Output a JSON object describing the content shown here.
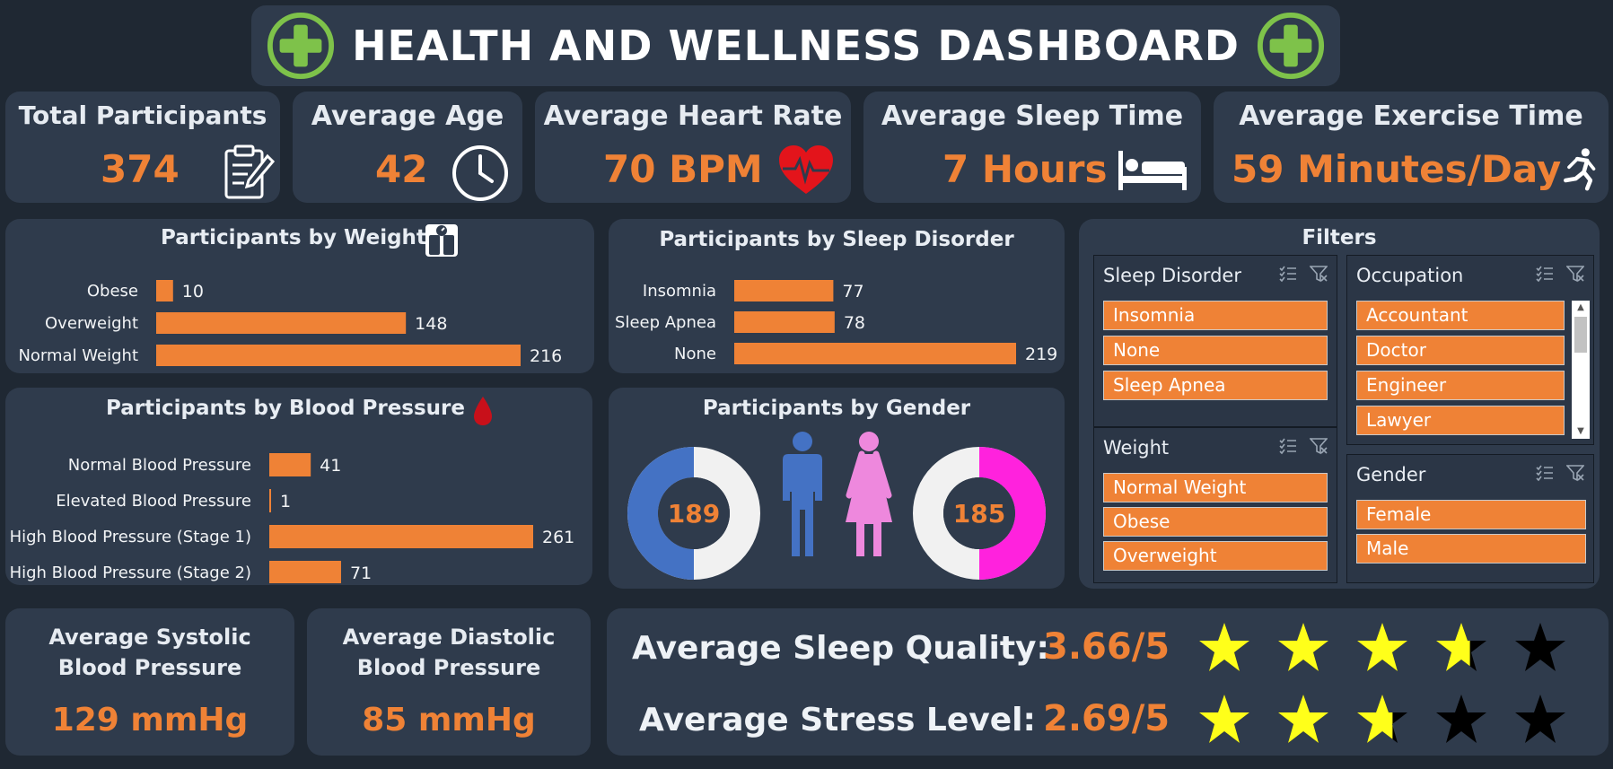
{
  "header": {
    "title": "HEALTH AND WELLNESS DASHBOARD"
  },
  "kpis": {
    "participants": {
      "title": "Total Participants",
      "value": "374"
    },
    "age": {
      "title": "Average Age",
      "value": "42"
    },
    "heart": {
      "title": "Average Heart Rate",
      "value": "70 BPM"
    },
    "sleep": {
      "title": "Average Sleep Time",
      "value": "7 Hours"
    },
    "exercise": {
      "title": "Average Exercise Time",
      "value": "59 Minutes/Day"
    }
  },
  "chart_data": [
    {
      "type": "bar",
      "title": "Participants by Weight",
      "categories": [
        "Obese",
        "Overweight",
        "Normal Weight"
      ],
      "values": [
        10,
        148,
        216
      ]
    },
    {
      "type": "bar",
      "title": "Participants by Sleep Disorder",
      "categories": [
        "Insomnia",
        "Sleep Apnea",
        "None"
      ],
      "values": [
        77,
        78,
        219
      ]
    },
    {
      "type": "bar",
      "title": "Participants by Blood Pressure",
      "categories": [
        "Normal Blood Pressure",
        "Elevated Blood Pressure",
        "High Blood Pressure (Stage 1)",
        "High Blood Pressure (Stage 2)"
      ],
      "values": [
        41,
        1,
        261,
        71
      ]
    },
    {
      "type": "pie",
      "title": "Participants by Gender",
      "categories": [
        "Male",
        "Female"
      ],
      "values": [
        189,
        185
      ],
      "colors": [
        "#4472c4",
        "#ff22dd"
      ]
    }
  ],
  "filters": {
    "title": "Filters",
    "sleep_disorder": {
      "title": "Sleep Disorder",
      "items": [
        "Insomnia",
        "None",
        "Sleep Apnea"
      ]
    },
    "occupation": {
      "title": "Occupation",
      "items": [
        "Accountant",
        "Doctor",
        "Engineer",
        "Lawyer"
      ]
    },
    "weight": {
      "title": "Weight",
      "items": [
        "Normal Weight",
        "Obese",
        "Overweight"
      ]
    },
    "gender": {
      "title": "Gender",
      "items": [
        "Female",
        "Male"
      ]
    }
  },
  "bp": {
    "systolic": {
      "title_line1": "Average Systolic",
      "title_line2": "Blood Pressure",
      "value": "129 mmHg"
    },
    "diastolic": {
      "title_line1": "Average Diastolic",
      "title_line2": "Blood Pressure",
      "value": "85 mmHg"
    }
  },
  "ratings": {
    "sleep_quality": {
      "label": "Average Sleep Quality:",
      "value": "3.66/5",
      "score": 3.66,
      "max": 5
    },
    "stress": {
      "label": "Average Stress Level:",
      "value": "2.69/5",
      "score": 2.69,
      "max": 5
    }
  },
  "colors": {
    "background": "#1f2833",
    "panel": "#2f3b4c",
    "accent": "#ef8236",
    "star_on": "#ffff1a",
    "star_off": "#000000",
    "icon_green": "#7ec24a",
    "heart_red": "#e3141b"
  }
}
